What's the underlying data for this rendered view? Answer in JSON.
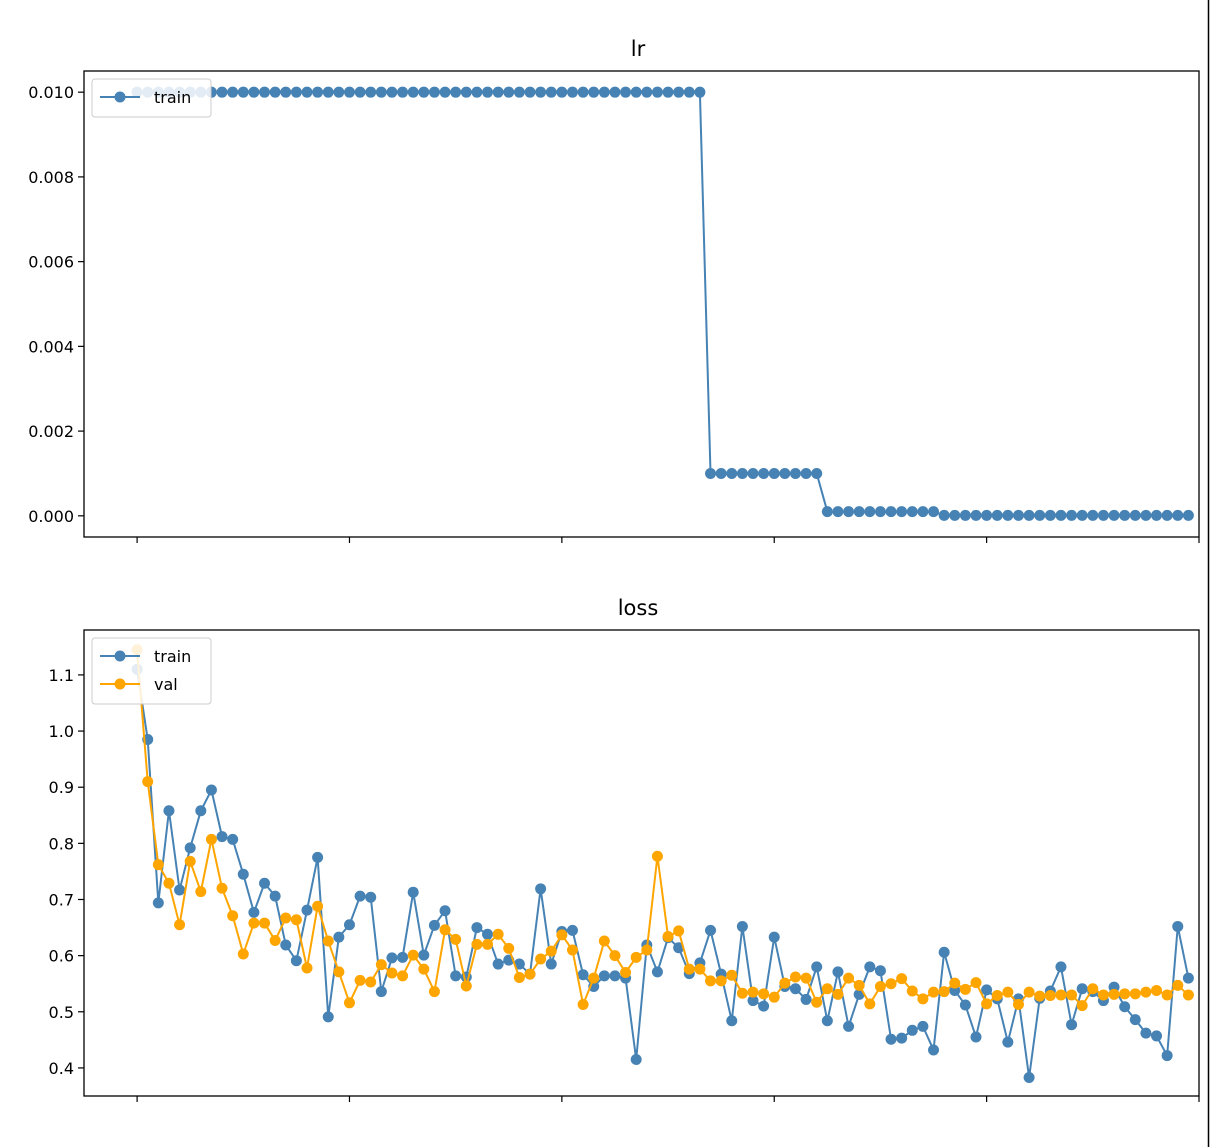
{
  "colors": {
    "train": "#4682b4",
    "val": "#ffa500",
    "background": "#ffffff"
  },
  "chart_data": [
    {
      "type": "line",
      "title": "lr",
      "xlabel": "",
      "ylabel": "",
      "ylim": [
        -0.0005,
        0.0105
      ],
      "yticks": [
        0.0,
        0.002,
        0.004,
        0.006,
        0.008,
        0.01
      ],
      "ytick_labels": [
        "0.000",
        "0.002",
        "0.004",
        "0.006",
        "0.008",
        "0.010"
      ],
      "xlim": [
        -5,
        100
      ],
      "xticks": [
        0,
        20,
        40,
        60,
        80,
        100
      ],
      "xtick_labels": [
        "",
        "",
        "",
        "",
        "",
        ""
      ],
      "grid": false,
      "legend_position": "top-left",
      "series": [
        {
          "name": "train",
          "color": "#4682b4",
          "x": [
            0,
            1,
            2,
            3,
            4,
            5,
            6,
            7,
            8,
            9,
            10,
            11,
            12,
            13,
            14,
            15,
            16,
            17,
            18,
            19,
            20,
            21,
            22,
            23,
            24,
            25,
            26,
            27,
            28,
            29,
            30,
            31,
            32,
            33,
            34,
            35,
            36,
            37,
            38,
            39,
            40,
            41,
            42,
            43,
            44,
            45,
            46,
            47,
            48,
            49,
            50,
            51,
            52,
            53,
            54,
            55,
            56,
            57,
            58,
            59,
            60,
            61,
            62,
            63,
            64,
            65,
            66,
            67,
            68,
            69,
            70,
            71,
            72,
            73,
            74,
            75,
            76,
            77,
            78,
            79,
            80,
            81,
            82,
            83,
            84,
            85,
            86,
            87,
            88,
            89,
            90,
            91,
            92,
            93,
            94,
            95,
            96,
            97,
            98,
            99
          ],
          "values": [
            0.01,
            0.01,
            0.01,
            0.01,
            0.01,
            0.01,
            0.01,
            0.01,
            0.01,
            0.01,
            0.01,
            0.01,
            0.01,
            0.01,
            0.01,
            0.01,
            0.01,
            0.01,
            0.01,
            0.01,
            0.01,
            0.01,
            0.01,
            0.01,
            0.01,
            0.01,
            0.01,
            0.01,
            0.01,
            0.01,
            0.01,
            0.01,
            0.01,
            0.01,
            0.01,
            0.01,
            0.01,
            0.01,
            0.01,
            0.01,
            0.01,
            0.01,
            0.01,
            0.01,
            0.01,
            0.01,
            0.01,
            0.01,
            0.01,
            0.01,
            0.01,
            0.01,
            0.01,
            0.01,
            0.001,
            0.001,
            0.001,
            0.001,
            0.001,
            0.001,
            0.001,
            0.001,
            0.001,
            0.001,
            0.001,
            0.0001,
            0.0001,
            0.0001,
            0.0001,
            0.0001,
            0.0001,
            0.0001,
            0.0001,
            0.0001,
            0.0001,
            0.0001,
            1e-05,
            1e-05,
            1e-05,
            1e-05,
            1e-05,
            1e-05,
            1e-05,
            1e-05,
            1e-05,
            1e-05,
            1e-05,
            1e-05,
            1e-05,
            1e-05,
            1e-05,
            1e-05,
            1e-05,
            1e-05,
            1e-05,
            1e-05,
            1e-05,
            1e-05,
            1e-05,
            1e-05
          ]
        }
      ]
    },
    {
      "type": "line",
      "title": "loss",
      "xlabel": "",
      "ylabel": "",
      "ylim": [
        0.35,
        1.18
      ],
      "yticks": [
        0.4,
        0.5,
        0.6,
        0.7,
        0.8,
        0.9,
        1.0,
        1.1
      ],
      "ytick_labels": [
        "0.4",
        "0.5",
        "0.6",
        "0.7",
        "0.8",
        "0.9",
        "1.0",
        "1.1"
      ],
      "xlim": [
        -5,
        100
      ],
      "xticks": [
        0,
        20,
        40,
        60,
        80,
        100
      ],
      "xtick_labels": [
        "",
        "",
        "",
        "",
        "",
        ""
      ],
      "grid": false,
      "legend_position": "top-left",
      "series": [
        {
          "name": "train",
          "color": "#4682b4",
          "x": [
            0,
            1,
            2,
            3,
            4,
            5,
            6,
            7,
            8,
            9,
            10,
            11,
            12,
            13,
            14,
            15,
            16,
            17,
            18,
            19,
            20,
            21,
            22,
            23,
            24,
            25,
            26,
            27,
            28,
            29,
            30,
            31,
            32,
            33,
            34,
            35,
            36,
            37,
            38,
            39,
            40,
            41,
            42,
            43,
            44,
            45,
            46,
            47,
            48,
            49,
            50,
            51,
            52,
            53,
            54,
            55,
            56,
            57,
            58,
            59,
            60,
            61,
            62,
            63,
            64,
            65,
            66,
            67,
            68,
            69,
            70,
            71,
            72,
            73,
            74,
            75,
            76,
            77,
            78,
            79,
            80,
            81,
            82,
            83,
            84,
            85,
            86,
            87,
            88,
            89,
            90,
            91,
            92,
            93,
            94,
            95,
            96,
            97,
            98,
            99
          ],
          "values": [
            1.11,
            0.985,
            0.694,
            0.858,
            0.717,
            0.792,
            0.858,
            0.895,
            0.812,
            0.807,
            0.745,
            0.677,
            0.729,
            0.706,
            0.619,
            0.591,
            0.681,
            0.775,
            0.491,
            0.633,
            0.655,
            0.706,
            0.704,
            0.536,
            0.596,
            0.597,
            0.713,
            0.601,
            0.654,
            0.68,
            0.564,
            0.562,
            0.65,
            0.638,
            0.585,
            0.592,
            0.585,
            0.567,
            0.719,
            0.585,
            0.643,
            0.645,
            0.566,
            0.545,
            0.564,
            0.564,
            0.56,
            0.415,
            0.619,
            0.571,
            0.632,
            0.614,
            0.568,
            0.587,
            0.645,
            0.567,
            0.484,
            0.652,
            0.52,
            0.51,
            0.633,
            0.545,
            0.541,
            0.522,
            0.58,
            0.484,
            0.571,
            0.474,
            0.531,
            0.58,
            0.573,
            0.451,
            0.453,
            0.467,
            0.474,
            0.432,
            0.606,
            0.538,
            0.512,
            0.455,
            0.539,
            0.523,
            0.446,
            0.523,
            0.383,
            0.524,
            0.537,
            0.58,
            0.477,
            0.541,
            0.536,
            0.52,
            0.544,
            0.509,
            0.486,
            0.462,
            0.457,
            0.422,
            0.652,
            0.56
          ]
        },
        {
          "name": "val",
          "color": "#ffa500",
          "x": [
            0,
            1,
            2,
            3,
            4,
            5,
            6,
            7,
            8,
            9,
            10,
            11,
            12,
            13,
            14,
            15,
            16,
            17,
            18,
            19,
            20,
            21,
            22,
            23,
            24,
            25,
            26,
            27,
            28,
            29,
            30,
            31,
            32,
            33,
            34,
            35,
            36,
            37,
            38,
            39,
            40,
            41,
            42,
            43,
            44,
            45,
            46,
            47,
            48,
            49,
            50,
            51,
            52,
            53,
            54,
            55,
            56,
            57,
            58,
            59,
            60,
            61,
            62,
            63,
            64,
            65,
            66,
            67,
            68,
            69,
            70,
            71,
            72,
            73,
            74,
            75,
            76,
            77,
            78,
            79,
            80,
            81,
            82,
            83,
            84,
            85,
            86,
            87,
            88,
            89,
            90,
            91,
            92,
            93,
            94,
            95,
            96,
            97,
            98,
            99
          ],
          "values": [
            1.145,
            0.91,
            0.762,
            0.729,
            0.655,
            0.768,
            0.714,
            0.807,
            0.72,
            0.671,
            0.603,
            0.658,
            0.658,
            0.627,
            0.667,
            0.664,
            0.578,
            0.688,
            0.626,
            0.571,
            0.516,
            0.556,
            0.553,
            0.584,
            0.569,
            0.564,
            0.601,
            0.576,
            0.536,
            0.646,
            0.629,
            0.546,
            0.62,
            0.62,
            0.638,
            0.613,
            0.561,
            0.567,
            0.594,
            0.608,
            0.637,
            0.61,
            0.513,
            0.56,
            0.626,
            0.6,
            0.57,
            0.597,
            0.61,
            0.777,
            0.634,
            0.644,
            0.576,
            0.576,
            0.555,
            0.555,
            0.565,
            0.533,
            0.535,
            0.532,
            0.526,
            0.551,
            0.562,
            0.56,
            0.517,
            0.541,
            0.531,
            0.56,
            0.547,
            0.514,
            0.545,
            0.55,
            0.559,
            0.537,
            0.523,
            0.535,
            0.536,
            0.551,
            0.54,
            0.552,
            0.514,
            0.529,
            0.535,
            0.513,
            0.535,
            0.528,
            0.529,
            0.53,
            0.53,
            0.511,
            0.541,
            0.53,
            0.531,
            0.532,
            0.532,
            0.535,
            0.538,
            0.53,
            0.547,
            0.53
          ]
        }
      ]
    }
  ]
}
